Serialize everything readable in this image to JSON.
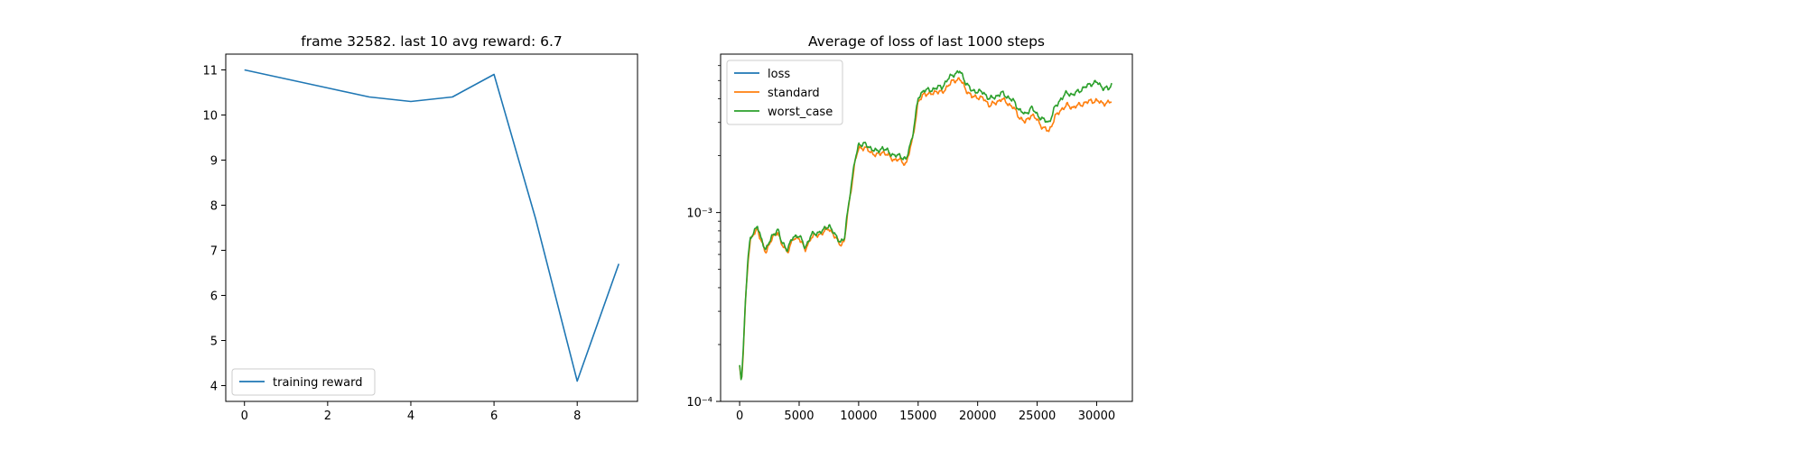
{
  "chart_data": [
    {
      "type": "line",
      "title": "frame 32582. last 10 avg reward: 6.7",
      "xlabel": "",
      "ylabel": "",
      "xlim": [
        -0.45,
        9.45
      ],
      "ylim": [
        3.65,
        11.35
      ],
      "yscale": "linear",
      "grid": false,
      "legend_location": "lower-left",
      "xticks": [
        0,
        2,
        4,
        6,
        8
      ],
      "xtick_labels": [
        "0",
        "2",
        "4",
        "6",
        "8"
      ],
      "yticks": [
        4,
        5,
        6,
        7,
        8,
        9,
        10,
        11
      ],
      "ytick_labels": [
        "4",
        "5",
        "6",
        "7",
        "8",
        "9",
        "10",
        "11"
      ],
      "series": [
        {
          "name": "training reward",
          "color": "#1f77b4",
          "x": [
            0,
            1,
            2,
            3,
            4,
            5,
            6,
            7,
            8,
            9
          ],
          "y": [
            11.0,
            10.8,
            10.6,
            10.4,
            10.3,
            10.4,
            10.9,
            7.7,
            4.1,
            6.7
          ]
        }
      ]
    },
    {
      "type": "line",
      "title": "Average of loss of last 1000 steps",
      "xlabel": "",
      "ylabel": "",
      "xlim": [
        -1600,
        33000
      ],
      "ylim": [
        0.0001,
        0.0069
      ],
      "yscale": "log",
      "grid": false,
      "legend_location": "upper-left",
      "xticks": [
        0,
        5000,
        10000,
        15000,
        20000,
        25000,
        30000
      ],
      "xtick_labels": [
        "0",
        "5000",
        "10000",
        "15000",
        "20000",
        "25000",
        "30000"
      ],
      "yticks": [
        0.0001,
        0.001
      ],
      "ytick_labels": [
        "10⁻⁴",
        "10⁻³"
      ],
      "x_max_step": 31300,
      "series": [
        {
          "name": "loss",
          "color": "#1f77b4",
          "points": []
        },
        {
          "name": "standard",
          "color": "#ff7f0e",
          "points": [
            [
              0,
              0.00015
            ],
            [
              150,
              0.000125
            ],
            [
              300,
              0.00018
            ],
            [
              500,
              0.00035
            ],
            [
              700,
              0.00055
            ],
            [
              900,
              0.0007
            ],
            [
              1200,
              0.00078
            ],
            [
              1500,
              0.00082
            ],
            [
              1800,
              0.0007
            ],
            [
              2200,
              0.00062
            ],
            [
              2700,
              0.00072
            ],
            [
              3200,
              0.0008
            ],
            [
              3500,
              0.00068
            ],
            [
              4000,
              0.00062
            ],
            [
              4500,
              0.00072
            ],
            [
              5000,
              0.00074
            ],
            [
              5500,
              0.00063
            ],
            [
              6000,
              0.00074
            ],
            [
              6500,
              0.00076
            ],
            [
              7000,
              0.00078
            ],
            [
              7500,
              0.00083
            ],
            [
              8000,
              0.00074
            ],
            [
              8500,
              0.00068
            ],
            [
              8800,
              0.0007
            ],
            [
              9000,
              0.0009
            ],
            [
              9300,
              0.00125
            ],
            [
              9700,
              0.00185
            ],
            [
              10000,
              0.0022
            ],
            [
              10500,
              0.0022
            ],
            [
              11000,
              0.0021
            ],
            [
              11500,
              0.002
            ],
            [
              12000,
              0.0021
            ],
            [
              12500,
              0.002
            ],
            [
              13000,
              0.0019
            ],
            [
              13500,
              0.0019
            ],
            [
              14000,
              0.0018
            ],
            [
              14500,
              0.0024
            ],
            [
              15000,
              0.0038
            ],
            [
              15500,
              0.0043
            ],
            [
              16000,
              0.0042
            ],
            [
              16500,
              0.0044
            ],
            [
              17000,
              0.0043
            ],
            [
              17500,
              0.0047
            ],
            [
              18000,
              0.005
            ],
            [
              18500,
              0.0051
            ],
            [
              19000,
              0.0045
            ],
            [
              19500,
              0.0041
            ],
            [
              20000,
              0.0041
            ],
            [
              20500,
              0.004
            ],
            [
              21000,
              0.0037
            ],
            [
              21500,
              0.0038
            ],
            [
              22000,
              0.004
            ],
            [
              22500,
              0.0038
            ],
            [
              23000,
              0.0036
            ],
            [
              23500,
              0.0032
            ],
            [
              24000,
              0.003
            ],
            [
              24500,
              0.0033
            ],
            [
              25000,
              0.0031
            ],
            [
              25500,
              0.0028
            ],
            [
              26000,
              0.0027
            ],
            [
              26500,
              0.0032
            ],
            [
              27000,
              0.0035
            ],
            [
              27500,
              0.0037
            ],
            [
              28000,
              0.0036
            ],
            [
              28500,
              0.0037
            ],
            [
              29000,
              0.0038
            ],
            [
              29500,
              0.0039
            ],
            [
              30000,
              0.0039
            ],
            [
              30500,
              0.0038
            ],
            [
              31000,
              0.0038
            ],
            [
              31300,
              0.0039
            ]
          ]
        },
        {
          "name": "worst_case",
          "color": "#2ca02c",
          "points": [
            [
              0,
              0.000155
            ],
            [
              150,
              0.000128
            ],
            [
              300,
              0.000185
            ],
            [
              500,
              0.00036
            ],
            [
              700,
              0.00057
            ],
            [
              900,
              0.00072
            ],
            [
              1200,
              0.0008
            ],
            [
              1500,
              0.00085
            ],
            [
              1800,
              0.00072
            ],
            [
              2200,
              0.00064
            ],
            [
              2700,
              0.00074
            ],
            [
              3200,
              0.00082
            ],
            [
              3500,
              0.0007
            ],
            [
              4000,
              0.00064
            ],
            [
              4500,
              0.00074
            ],
            [
              5000,
              0.00076
            ],
            [
              5500,
              0.00065
            ],
            [
              6000,
              0.00076
            ],
            [
              6500,
              0.00078
            ],
            [
              7000,
              0.0008
            ],
            [
              7500,
              0.00086
            ],
            [
              8000,
              0.00076
            ],
            [
              8500,
              0.0007
            ],
            [
              8800,
              0.00072
            ],
            [
              9000,
              0.00093
            ],
            [
              9300,
              0.0013
            ],
            [
              9700,
              0.0019
            ],
            [
              10000,
              0.0023
            ],
            [
              10500,
              0.0023
            ],
            [
              11000,
              0.0022
            ],
            [
              11500,
              0.0021
            ],
            [
              12000,
              0.0022
            ],
            [
              12500,
              0.0021
            ],
            [
              13000,
              0.002
            ],
            [
              13500,
              0.002
            ],
            [
              14000,
              0.0019
            ],
            [
              14500,
              0.0025
            ],
            [
              15000,
              0.004
            ],
            [
              15500,
              0.0045
            ],
            [
              16000,
              0.0044
            ],
            [
              16500,
              0.0046
            ],
            [
              17000,
              0.0046
            ],
            [
              17500,
              0.0051
            ],
            [
              18000,
              0.0054
            ],
            [
              18500,
              0.0056
            ],
            [
              19000,
              0.0049
            ],
            [
              19500,
              0.0044
            ],
            [
              20000,
              0.0044
            ],
            [
              20500,
              0.0043
            ],
            [
              21000,
              0.004
            ],
            [
              21500,
              0.0041
            ],
            [
              22000,
              0.0043
            ],
            [
              22500,
              0.0041
            ],
            [
              23000,
              0.0039
            ],
            [
              23500,
              0.0035
            ],
            [
              24000,
              0.0033
            ],
            [
              24500,
              0.0036
            ],
            [
              25000,
              0.0033
            ],
            [
              25500,
              0.0031
            ],
            [
              26000,
              0.003
            ],
            [
              26500,
              0.0036
            ],
            [
              27000,
              0.004
            ],
            [
              27500,
              0.0043
            ],
            [
              28000,
              0.0042
            ],
            [
              28500,
              0.0044
            ],
            [
              29000,
              0.0046
            ],
            [
              29500,
              0.0048
            ],
            [
              30000,
              0.0049
            ],
            [
              30500,
              0.0046
            ],
            [
              31000,
              0.0045
            ],
            [
              31300,
              0.0048
            ]
          ]
        }
      ]
    }
  ]
}
